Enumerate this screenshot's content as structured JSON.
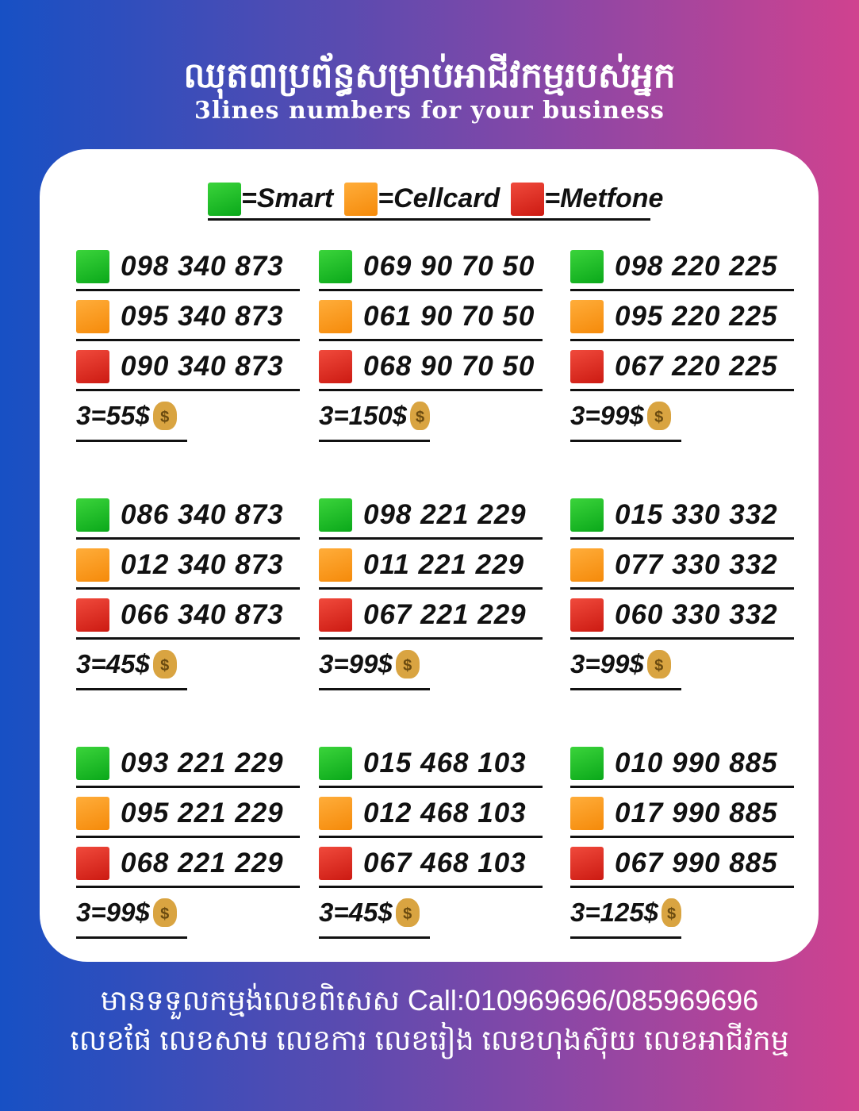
{
  "header": {
    "title": "ឈុត៣ប្រព័ន្ធសម្រាប់អាជីវកម្មរបស់អ្នក",
    "subtitle": "3lines numbers for your business"
  },
  "legend": [
    {
      "label": "=Smart",
      "color": "#13b523"
    },
    {
      "label": "=Cellcard",
      "color": "#f7920f"
    },
    {
      "label": "=Metfone",
      "color": "#d8201a"
    }
  ],
  "groups": [
    {
      "numbers": [
        "098 340 873",
        "095 340 873",
        "090 340 873"
      ],
      "price": "3=55$"
    },
    {
      "numbers": [
        "069 90 70 50",
        "061 90 70 50",
        "068 90 70 50"
      ],
      "price": "3=150$"
    },
    {
      "numbers": [
        "098 220 225",
        "095 220 225",
        "067 220 225"
      ],
      "price": "3=99$"
    },
    {
      "numbers": [
        "086 340 873",
        "012 340 873",
        "066 340 873"
      ],
      "price": "3=45$"
    },
    {
      "numbers": [
        "098 221 229",
        "011 221 229",
        "067 221 229"
      ],
      "price": "3=99$"
    },
    {
      "numbers": [
        "015 330 332",
        "077 330 332",
        "060 330 332"
      ],
      "price": "3=99$"
    },
    {
      "numbers": [
        "093 221 229",
        "095 221 229",
        "068 221 229"
      ],
      "price": "3=99$"
    },
    {
      "numbers": [
        "015 468 103",
        "012 468 103",
        "067 468 103"
      ],
      "price": "3=45$"
    },
    {
      "numbers": [
        "010 990 885",
        "017 990 885",
        "067 990 885"
      ],
      "price": "3=125$"
    }
  ],
  "footer": {
    "line1": "មានទទួលកម្មង់លេខពិសេស Call:010969696/085969696",
    "line2": "លេខផែ លេខសាម លេខការ លេខរៀង លេខហុងស៊ុយ លេខអាជីវកម្ម"
  },
  "icons": {
    "money": "money-bag-icon"
  }
}
